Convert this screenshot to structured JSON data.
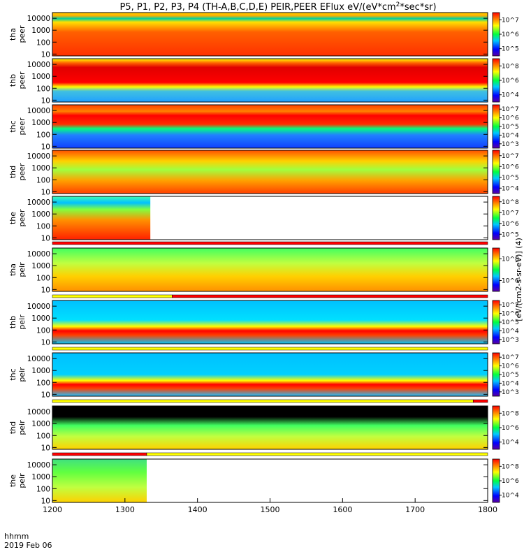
{
  "title": "P5, P1, P2, P3, P4 (TH-A,B,C,D,E) PEIR,PEER EFlux eV/(eV*cm",
  "title_sup": "2",
  "title_tail": "*sec*sr)",
  "colorbar_label": "[eV/(cm2-s-sr-eV)] (4)",
  "x_axis": {
    "label_line1": "hhmm",
    "label_line2": "2019 Feb 06",
    "range": [
      1200,
      1800
    ],
    "ticks": [
      "1200",
      "1300",
      "1400",
      "1500",
      "1600",
      "1700",
      "1800"
    ]
  },
  "chart_data": {
    "type": "heatmap",
    "x_units": "hhmm UT",
    "y_units": "eV (log)",
    "xlim": [
      1200,
      1800
    ],
    "y_ticks": [
      "10",
      "100",
      "1000",
      "10000"
    ],
    "panels": [
      {
        "probe": "tha",
        "species": "peer",
        "ylabel_line1": "tha",
        "ylabel_line2": "peer",
        "ylim": [
          7,
          30000
        ],
        "cb_ticks": [
          "10^5",
          "10^6",
          "10^7"
        ],
        "coverage": [
          1200,
          1800
        ]
      },
      {
        "probe": "thb",
        "species": "peer",
        "ylabel_line1": "thb",
        "ylabel_line2": "peer",
        "ylim": [
          7,
          30000
        ],
        "cb_ticks": [
          "10^4",
          "10^6",
          "10^8"
        ],
        "coverage": [
          1200,
          1800
        ]
      },
      {
        "probe": "thc",
        "species": "peer",
        "ylabel_line1": "thc",
        "ylabel_line2": "peer",
        "ylim": [
          7,
          30000
        ],
        "cb_ticks": [
          "10^3",
          "10^4",
          "10^5",
          "10^6",
          "10^7"
        ],
        "coverage": [
          1200,
          1800
        ]
      },
      {
        "probe": "thd",
        "species": "peer",
        "ylabel_line1": "thd",
        "ylabel_line2": "peer",
        "ylim": [
          7,
          30000
        ],
        "cb_ticks": [
          "10^4",
          "10^5",
          "10^6",
          "10^7"
        ],
        "coverage": [
          1200,
          1800
        ]
      },
      {
        "probe": "the",
        "species": "peer",
        "ylabel_line1": "the",
        "ylabel_line2": "peer",
        "ylim": [
          7,
          30000
        ],
        "cb_ticks": [
          "10^5",
          "10^6",
          "10^7",
          "10^8"
        ],
        "coverage": [
          1200,
          1335
        ]
      },
      {
        "probe": "tha",
        "species": "peir",
        "ylabel_line1": "tha",
        "ylabel_line2": "peir",
        "ylim": [
          7,
          30000
        ],
        "cb_ticks": [
          "10^6",
          "10^8"
        ],
        "coverage": [
          1200,
          1800
        ]
      },
      {
        "probe": "thb",
        "species": "peir",
        "ylabel_line1": "thb",
        "ylabel_line2": "peir",
        "ylim": [
          7,
          30000
        ],
        "cb_ticks": [
          "10^3",
          "10^4",
          "10^5",
          "10^6",
          "10^7"
        ],
        "coverage": [
          1200,
          1800
        ]
      },
      {
        "probe": "thc",
        "species": "peir",
        "ylabel_line1": "thc",
        "ylabel_line2": "peir",
        "ylim": [
          7,
          30000
        ],
        "cb_ticks": [
          "10^3",
          "10^4",
          "10^5",
          "10^6",
          "10^7"
        ],
        "coverage": [
          1200,
          1800
        ]
      },
      {
        "probe": "thd",
        "species": "peir",
        "ylabel_line1": "thd",
        "ylabel_line2": "peir",
        "ylim": [
          7,
          30000
        ],
        "cb_ticks": [
          "10^4",
          "10^6",
          "10^8"
        ],
        "coverage": [
          1200,
          1800
        ]
      },
      {
        "probe": "the",
        "species": "peir",
        "ylabel_line1": "the",
        "ylabel_line2": "peir",
        "ylim": [
          7,
          30000
        ],
        "cb_ticks": [
          "10^4",
          "10^6",
          "10^8"
        ],
        "coverage": [
          1200,
          1330
        ]
      }
    ]
  },
  "colors": {
    "background": "#ffffff",
    "mode_bar_red": "#ff0000",
    "mode_bar_yellow": "#ffff00"
  }
}
